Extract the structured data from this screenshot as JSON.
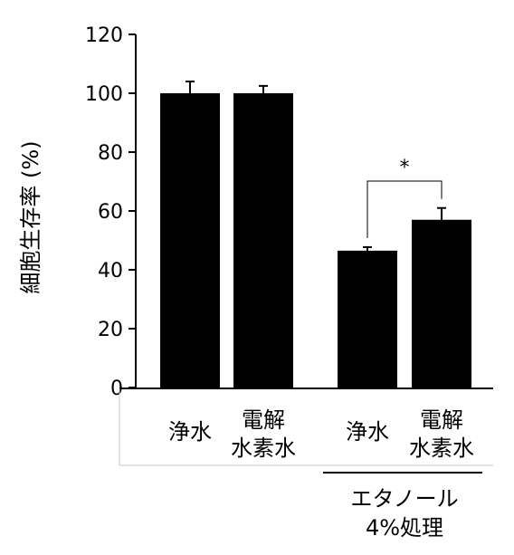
{
  "chart_data": {
    "type": "bar",
    "title": "",
    "xlabel": "",
    "ylabel": "細胞生存率 (%)",
    "ylim": [
      0,
      120
    ],
    "yticks": [
      0,
      20,
      40,
      60,
      80,
      100,
      120
    ],
    "grid": false,
    "legend": "none",
    "bar_color": "#000000",
    "categories": [
      {
        "line1": "浄水",
        "line2": ""
      },
      {
        "line1": "電解",
        "line2": "水素水"
      },
      {
        "line1": "浄水",
        "line2": ""
      },
      {
        "line1": "電解",
        "line2": "水素水"
      }
    ],
    "values": [
      100,
      100,
      46.5,
      57
    ],
    "errors": [
      4,
      2.5,
      1.2,
      4
    ],
    "group_label": {
      "line1": "エタノール",
      "line2": "4%処理",
      "spans": [
        2,
        3
      ]
    },
    "significance": {
      "from": 2,
      "to": 3,
      "label": "*"
    }
  }
}
